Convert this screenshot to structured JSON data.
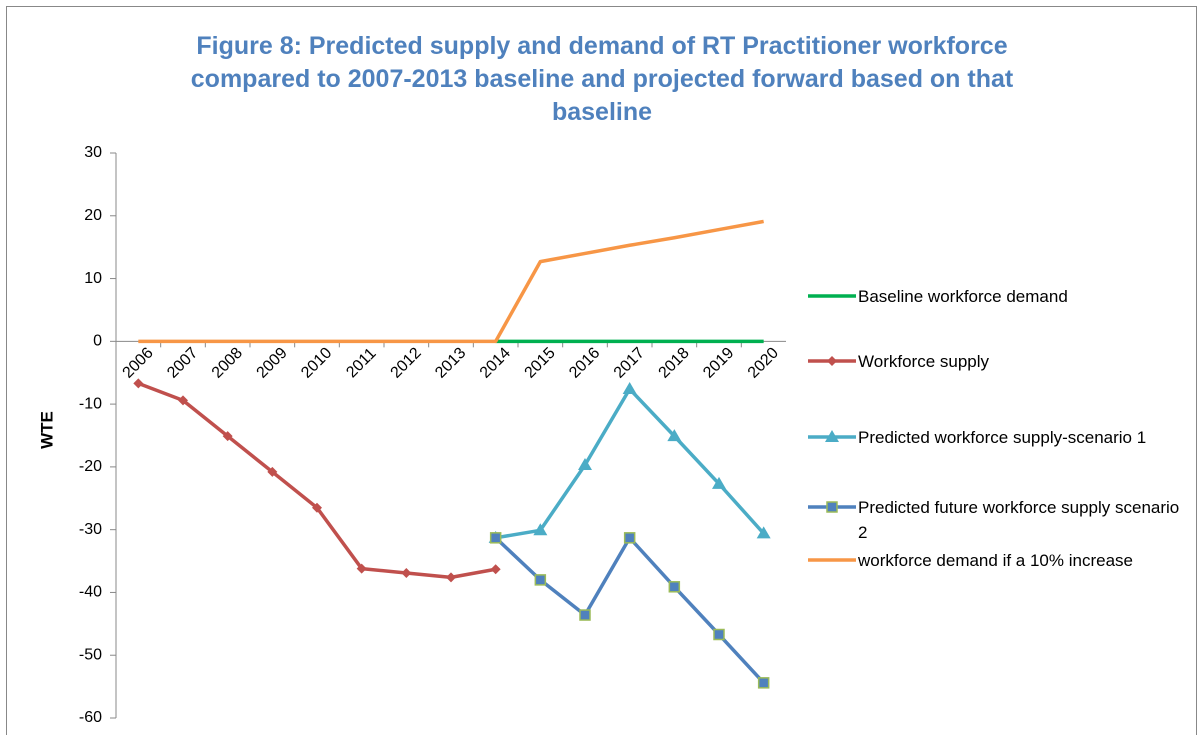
{
  "chart_data": {
    "type": "line",
    "title": "Figure 8: Predicted supply and demand of RT Practitioner workforce compared to 2007-2013 baseline and projected forward based on that baseline",
    "y_label": "WTE",
    "categories": [
      "2006",
      "2007",
      "2008",
      "2009",
      "2010",
      "2011",
      "2012",
      "2013",
      "2014",
      "2015",
      "2016",
      "2017",
      "2018",
      "2019",
      "2020"
    ],
    "ylim": [
      -60,
      30
    ],
    "yticks": [
      -60,
      -50,
      -40,
      -30,
      -20,
      -10,
      0,
      10,
      20,
      30
    ],
    "grid": false,
    "legend": "right",
    "series": [
      {
        "name": "Baseline workforce demand",
        "color": "#00b050",
        "marker": "none",
        "values": [
          null,
          null,
          null,
          null,
          null,
          null,
          null,
          null,
          0,
          0,
          0,
          0,
          0,
          0,
          0
        ]
      },
      {
        "name": "Workforce supply",
        "color": "#c0504d",
        "marker": "diamond",
        "values": [
          -6.7,
          -9.4,
          -15.1,
          -20.8,
          -26.5,
          -36.2,
          -36.9,
          -37.6,
          -36.3,
          null,
          null,
          null,
          null,
          null,
          null
        ]
      },
      {
        "name": "Predicted workforce supply-scenario 1",
        "color": "#4bacc6",
        "marker": "triangle",
        "values": [
          null,
          null,
          null,
          null,
          null,
          null,
          null,
          null,
          -31.3,
          -30.1,
          -19.7,
          -7.6,
          -15.1,
          -22.7,
          -30.6
        ]
      },
      {
        "name": "Predicted future workforce supply scenario 2",
        "color": "#4f81bd",
        "marker": "square",
        "values": [
          null,
          null,
          null,
          null,
          null,
          null,
          null,
          null,
          -31.3,
          -38.0,
          -43.6,
          -31.3,
          -39.1,
          -46.7,
          -54.4
        ]
      },
      {
        "name": "workforce demand if a 10% increase",
        "color": "#f79646",
        "marker": "none",
        "values": [
          0,
          0,
          0,
          0,
          0,
          0,
          0,
          0,
          0,
          12.7,
          14.0,
          15.3,
          16.5,
          17.8,
          19.1
        ]
      }
    ]
  }
}
